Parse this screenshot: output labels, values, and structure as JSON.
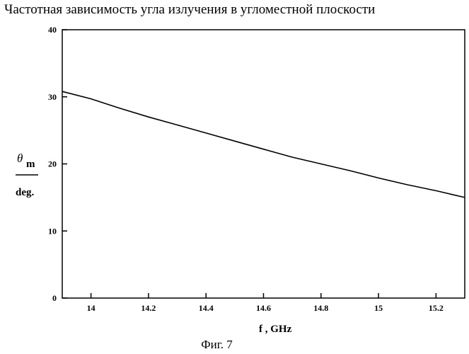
{
  "chart_data": {
    "type": "line",
    "title": "Частотная зависимость угла излучения в угломестной плоскости",
    "xlabel": "f , GHz",
    "ylabel": {
      "symbol": "θ",
      "subscript": "m",
      "unit": "deg."
    },
    "xlim": [
      13.9,
      15.3
    ],
    "ylim": [
      0,
      40
    ],
    "x_ticks": [
      {
        "value": 14.0,
        "label": "14"
      },
      {
        "value": 14.2,
        "label": "14.2"
      },
      {
        "value": 14.4,
        "label": "14.4"
      },
      {
        "value": 14.6,
        "label": "14.6"
      },
      {
        "value": 14.8,
        "label": "14.8"
      },
      {
        "value": 15.0,
        "label": "15"
      },
      {
        "value": 15.2,
        "label": "15.2"
      }
    ],
    "y_ticks": [
      {
        "value": 0,
        "label": "0"
      },
      {
        "value": 10,
        "label": "10"
      },
      {
        "value": 20,
        "label": "20"
      },
      {
        "value": 30,
        "label": "30"
      },
      {
        "value": 40,
        "label": "40"
      }
    ],
    "grid": false,
    "legend": "none",
    "line_color": "#000000",
    "series": [
      {
        "x": [
          13.9,
          14.0,
          14.1,
          14.2,
          14.3,
          14.4,
          14.5,
          14.6,
          14.7,
          14.8,
          14.9,
          15.0,
          15.1,
          15.2,
          15.3
        ],
        "values": [
          30.8,
          29.7,
          28.3,
          27.0,
          25.8,
          24.6,
          23.4,
          22.2,
          21.0,
          20.0,
          19.0,
          17.9,
          16.9,
          16.0,
          15.0
        ]
      }
    ]
  },
  "caption": "Фиг. 7"
}
